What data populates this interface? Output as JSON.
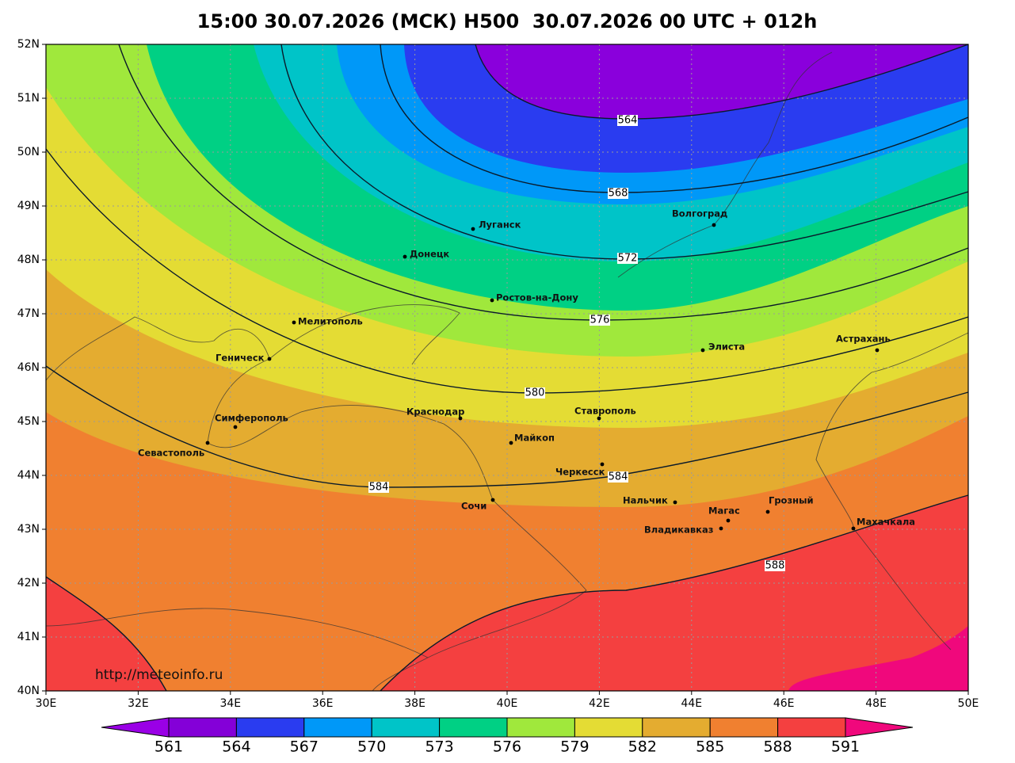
{
  "title": "15:00 30.07.2026 (МСК) H500  30.07.2026 00 UTC + 012h",
  "lat_labels": [
    "52N",
    "51N",
    "50N",
    "49N",
    "48N",
    "47N",
    "46N",
    "45N",
    "44N",
    "43N",
    "42N",
    "41N",
    "40N"
  ],
  "lon_labels": [
    "30E",
    "32E",
    "34E",
    "36E",
    "38E",
    "40E",
    "42E",
    "44E",
    "46E",
    "48E",
    "50E"
  ],
  "cities": [
    "Луганск",
    "Донецк",
    "Волгоград",
    "Ростов-на-Дону",
    "Мелитополь",
    "Элиста",
    "Астрахань",
    "Геническ",
    "Симферополь",
    "Севастополь",
    "Краснодар",
    "Ставрополь",
    "Майкоп",
    "Черкесск",
    "Сочи",
    "Нальчик",
    "Магас",
    "Грозный",
    "Владикавказ",
    "Махачкала"
  ],
  "contour_labels": [
    564,
    568,
    572,
    576,
    580,
    584,
    584,
    588
  ],
  "credit": "http://meteoinfo.ru",
  "colorbar": {
    "levels": [
      561,
      564,
      567,
      570,
      573,
      576,
      579,
      582,
      585,
      588,
      591
    ],
    "colors": [
      "#9a00e6",
      "#8400d8",
      "#2a3cf0",
      "#0098f8",
      "#00c4c8",
      "#00d084",
      "#a0e83c",
      "#e4dc34",
      "#e4ac30",
      "#f08030",
      "#f44040",
      "#f0087c"
    ]
  }
}
